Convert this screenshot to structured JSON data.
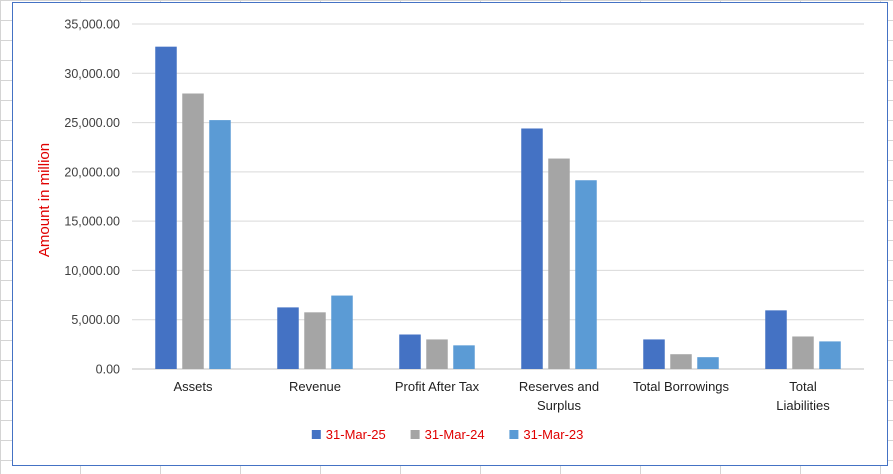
{
  "chart_data": {
    "type": "bar",
    "title": "",
    "xlabel": "",
    "ylabel": "Amount in million",
    "ylim": [
      0,
      35000
    ],
    "yticks": [
      "0.00",
      "5,000.00",
      "10,000.00",
      "15,000.00",
      "20,000.00",
      "25,000.00",
      "30,000.00",
      "35,000.00"
    ],
    "grid": true,
    "legend_position": "bottom",
    "categories": [
      "Assets",
      "Revenue",
      "Profit After Tax",
      "Reserves and Surplus",
      "Total Borrowings",
      "Total Liabilities"
    ],
    "series": [
      {
        "name": "31-Mar-25",
        "color": "#4472c4",
        "values": [
          32700,
          6250,
          3500,
          24400,
          3000,
          5950
        ]
      },
      {
        "name": "31-Mar-24",
        "color": "#a5a5a5",
        "values": [
          27950,
          5750,
          3000,
          21350,
          1500,
          3300
        ]
      },
      {
        "name": "31-Mar-23",
        "color": "#5b9bd5",
        "values": [
          25250,
          7450,
          2400,
          19150,
          1200,
          2800
        ]
      }
    ]
  }
}
